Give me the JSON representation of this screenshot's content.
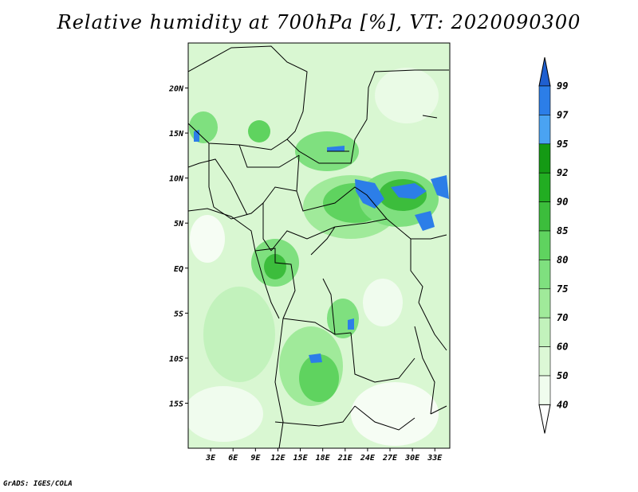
{
  "title": "Relative humidity at 700hPa [%], VT: 2020090300",
  "credit": "GrADS: IGES/COLA",
  "map": {
    "lon_range": [
      0,
      35
    ],
    "lat_range": [
      -20,
      25
    ],
    "lon_ticks": [
      "3E",
      "6E",
      "9E",
      "12E",
      "15E",
      "18E",
      "21E",
      "24E",
      "27E",
      "30E",
      "33E"
    ],
    "lat_ticks": [
      "20N",
      "15N",
      "10N",
      "5N",
      "EQ",
      "5S",
      "10S",
      "15S"
    ],
    "background_color": "#d9f7d2"
  },
  "colorbar": {
    "levels": [
      "99",
      "97",
      "95",
      "92",
      "90",
      "85",
      "80",
      "75",
      "70",
      "60",
      "50",
      "40"
    ],
    "colors": [
      "#1f5fd0",
      "#2c7ee8",
      "#4aa3f2",
      "#149a14",
      "#22ad22",
      "#3cbd3c",
      "#5fd35f",
      "#7fe07f",
      "#a0ea9a",
      "#c2f2bc",
      "#dcf8d6",
      "#f0fcee"
    ],
    "top_arrow_color": "#1f5fd0",
    "bottom_arrow_color": "#ffffff"
  }
}
